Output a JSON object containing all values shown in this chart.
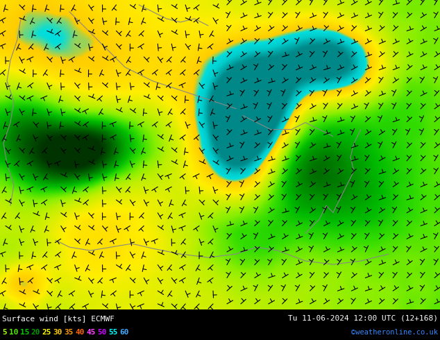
{
  "title_left": "Surface wind [kts] ECMWF",
  "title_right": "Tu 11-06-2024 12:00 UTC (12+168)",
  "credit": "©weatheronline.co.uk",
  "legend_values": [
    5,
    10,
    15,
    20,
    25,
    30,
    35,
    40,
    45,
    50,
    55,
    60
  ],
  "legend_colors": [
    "#aaff00",
    "#55ee00",
    "#00cc00",
    "#009900",
    "#ffff00",
    "#ffcc00",
    "#ff9900",
    "#ff6600",
    "#ff44ff",
    "#cc00ff",
    "#00ffff",
    "#44aaff"
  ],
  "bg_color": "#000000",
  "cmap_colors": [
    "#003300",
    "#005500",
    "#007700",
    "#009900",
    "#00bb00",
    "#00dd00",
    "#66ee00",
    "#aaee00",
    "#ddee00",
    "#ffee00",
    "#ffdd00",
    "#ffcc00",
    "#ffbb00",
    "#00cccc",
    "#00aaaa"
  ],
  "figwidth": 6.34,
  "figheight": 4.9,
  "dpi": 100
}
